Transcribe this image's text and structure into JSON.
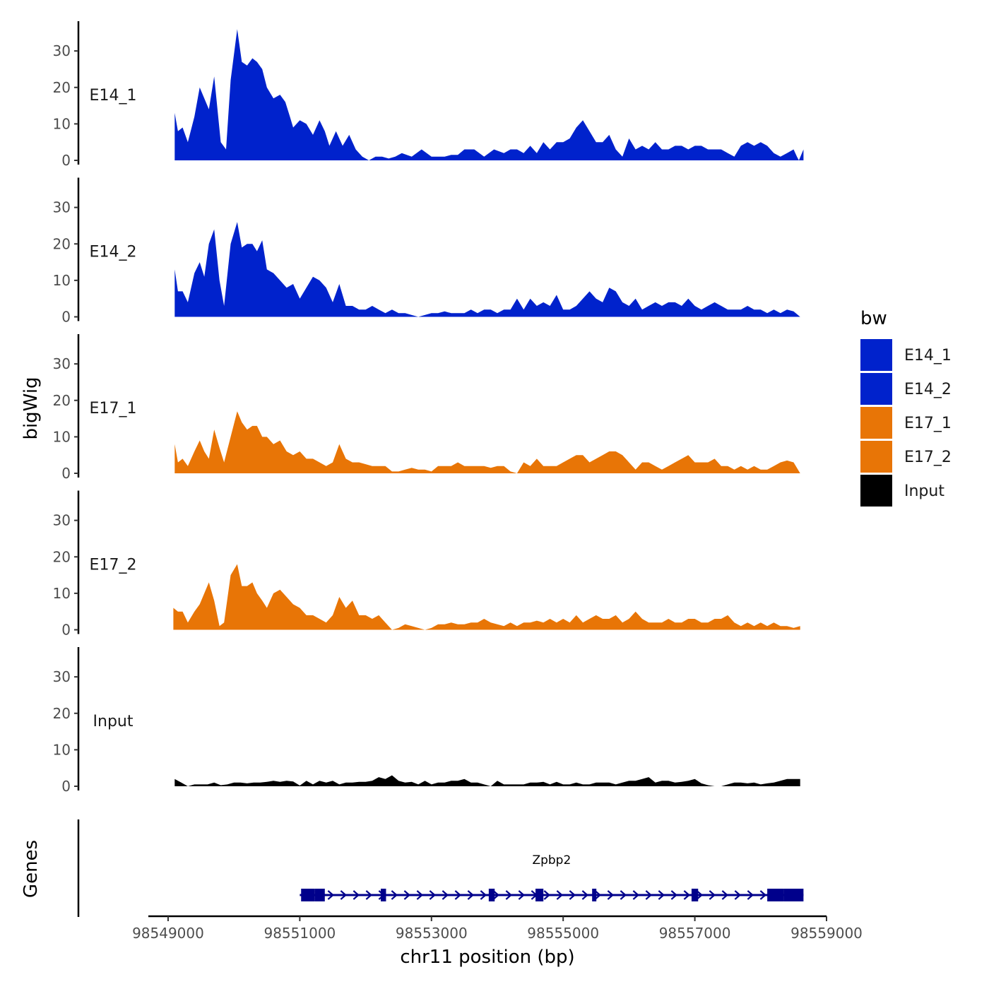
{
  "chart_data": {
    "type": "area",
    "title": "",
    "ylabel": "bigWig",
    "xlabel": "chr11 position (bp)",
    "gene_track_label": "Genes",
    "xlim": [
      98548700,
      98559000
    ],
    "ylim": [
      0,
      37
    ],
    "x_ticks": [
      98549000,
      98551000,
      98553000,
      98555000,
      98557000,
      98559000
    ],
    "x_tick_labels": [
      "98549000",
      "98551000",
      "98553000",
      "98555000",
      "98557000",
      "98559000"
    ],
    "y_ticks": [
      0,
      10,
      20,
      30
    ],
    "y_tick_labels": [
      "0",
      "10",
      "20",
      "30"
    ],
    "legend": {
      "title": "bw",
      "position": "right",
      "entries": [
        {
          "label": "E14_1",
          "color": "#0022CC"
        },
        {
          "label": "E14_2",
          "color": "#0022CC"
        },
        {
          "label": "E17_1",
          "color": "#E87506"
        },
        {
          "label": "E17_2",
          "color": "#E87506"
        },
        {
          "label": "Input",
          "color": "#000000"
        }
      ]
    },
    "series": [
      {
        "name": "E14_1",
        "color": "#0022CC",
        "x": [
          98549100,
          98549150,
          98549220,
          98549300,
          98549400,
          98549480,
          98549550,
          98549620,
          98549700,
          98549800,
          98549880,
          98549950,
          98550050,
          98550120,
          98550200,
          98550280,
          98550350,
          98550430,
          98550500,
          98550600,
          98550700,
          98550780,
          98550850,
          98550900,
          98551000,
          98551100,
          98551200,
          98551300,
          98551380,
          98551450,
          98551550,
          98551650,
          98551750,
          98551850,
          98551950,
          98552050,
          98552150,
          98552250,
          98552350,
          98552450,
          98552550,
          98552700,
          98552850,
          98553000,
          98553100,
          98553200,
          98553300,
          98553400,
          98553500,
          98553650,
          98553800,
          98553950,
          98554100,
          98554200,
          98554300,
          98554400,
          98554500,
          98554600,
          98554700,
          98554800,
          98554900,
          98555000,
          98555100,
          98555200,
          98555300,
          98555400,
          98555500,
          98555600,
          98555700,
          98555800,
          98555900,
          98556000,
          98556100,
          98556200,
          98556300,
          98556400,
          98556500,
          98556600,
          98556700,
          98556800,
          98556900,
          98557000,
          98557100,
          98557200,
          98557300,
          98557400,
          98557500,
          98557600,
          98557700,
          98557800,
          98557900,
          98558000,
          98558100,
          98558200,
          98558300,
          98558400,
          98558500,
          98558550,
          98558580,
          98558650
        ],
        "values": [
          13,
          8,
          9,
          5,
          12,
          20,
          17,
          14,
          23,
          5,
          3,
          22,
          36,
          27,
          26,
          28,
          27,
          25,
          20,
          17,
          18,
          16,
          12,
          9,
          11,
          10,
          7,
          11,
          8,
          4,
          8,
          4,
          7,
          3,
          1,
          0,
          1,
          1,
          0.5,
          1,
          2,
          1,
          3,
          1,
          1,
          1,
          1.5,
          1.5,
          3,
          3,
          1,
          3,
          2,
          3,
          3,
          2,
          4,
          2,
          5,
          3,
          5,
          5,
          6,
          9,
          11,
          8,
          5,
          5,
          7,
          3,
          1,
          6,
          3,
          4,
          3,
          5,
          3,
          3,
          4,
          4,
          3,
          4,
          4,
          3,
          3,
          3,
          2,
          1,
          4,
          5,
          4,
          5,
          4,
          2,
          1,
          2,
          3,
          1,
          0,
          3
        ]
      },
      {
        "name": "E14_2",
        "color": "#0022CC",
        "x": [
          98549100,
          98549150,
          98549220,
          98549300,
          98549400,
          98549480,
          98549550,
          98549620,
          98549700,
          98549780,
          98549850,
          98549950,
          98550050,
          98550120,
          98550200,
          98550280,
          98550350,
          98550430,
          98550500,
          98550600,
          98550700,
          98550800,
          98550900,
          98551000,
          98551100,
          98551200,
          98551300,
          98551400,
          98551500,
          98551600,
          98551700,
          98551800,
          98551900,
          98552000,
          98552100,
          98552200,
          98552300,
          98552400,
          98552500,
          98552600,
          98552700,
          98552800,
          98552900,
          98553000,
          98553100,
          98553200,
          98553300,
          98553400,
          98553500,
          98553600,
          98553700,
          98553800,
          98553900,
          98554000,
          98554100,
          98554200,
          98554300,
          98554400,
          98554500,
          98554600,
          98554700,
          98554800,
          98554900,
          98555000,
          98555100,
          98555200,
          98555300,
          98555400,
          98555500,
          98555600,
          98555700,
          98555800,
          98555900,
          98556000,
          98556100,
          98556200,
          98556300,
          98556400,
          98556500,
          98556600,
          98556700,
          98556800,
          98556900,
          98557000,
          98557100,
          98557200,
          98557300,
          98557400,
          98557500,
          98557600,
          98557700,
          98557800,
          98557900,
          98558000,
          98558100,
          98558200,
          98558300,
          98558400,
          98558500,
          98558600
        ],
        "values": [
          13,
          7,
          7,
          4,
          12,
          15,
          11,
          20,
          24,
          10,
          3,
          20,
          26,
          19,
          20,
          20,
          18,
          21,
          13,
          12,
          10,
          8,
          9,
          5,
          8,
          11,
          10,
          8,
          4,
          9,
          3,
          3,
          2,
          2,
          3,
          2,
          1,
          2,
          1,
          1,
          0.5,
          0,
          0.5,
          1,
          1,
          1.5,
          1,
          1,
          1,
          2,
          1,
          2,
          2,
          1,
          2,
          2,
          5,
          2,
          5,
          3,
          4,
          3,
          6,
          2,
          2,
          3,
          5,
          7,
          5,
          4,
          8,
          7,
          4,
          3,
          5,
          2,
          3,
          4,
          3,
          4,
          4,
          3,
          5,
          3,
          2,
          3,
          4,
          3,
          2,
          2,
          2,
          3,
          2,
          2,
          1,
          2,
          1,
          2,
          1.5,
          0
        ]
      },
      {
        "name": "E17_1",
        "color": "#E87506",
        "x": [
          98549100,
          98549150,
          98549220,
          98549300,
          98549400,
          98549480,
          98549550,
          98549620,
          98549700,
          98549780,
          98549850,
          98549950,
          98550050,
          98550120,
          98550200,
          98550280,
          98550350,
          98550430,
          98550500,
          98550600,
          98550700,
          98550800,
          98550900,
          98551000,
          98551100,
          98551200,
          98551300,
          98551400,
          98551500,
          98551600,
          98551700,
          98551800,
          98551900,
          98552000,
          98552100,
          98552200,
          98552300,
          98552400,
          98552500,
          98552600,
          98552700,
          98552800,
          98552900,
          98553000,
          98553100,
          98553200,
          98553300,
          98553400,
          98553500,
          98553600,
          98553700,
          98553800,
          98553900,
          98554000,
          98554100,
          98554200,
          98554300,
          98554400,
          98554500,
          98554600,
          98554700,
          98554800,
          98554900,
          98555000,
          98555100,
          98555200,
          98555300,
          98555400,
          98555500,
          98555600,
          98555700,
          98555800,
          98555900,
          98556000,
          98556100,
          98556200,
          98556300,
          98556400,
          98556500,
          98556600,
          98556700,
          98556800,
          98556900,
          98557000,
          98557100,
          98557200,
          98557300,
          98557400,
          98557500,
          98557600,
          98557700,
          98557800,
          98557900,
          98558000,
          98558100,
          98558200,
          98558300,
          98558400,
          98558500,
          98558600
        ],
        "values": [
          8,
          3,
          4,
          2,
          6,
          9,
          6,
          4,
          12,
          7,
          3,
          10,
          17,
          14,
          12,
          13,
          13,
          10,
          10,
          8,
          9,
          6,
          5,
          6,
          4,
          4,
          3,
          2,
          3,
          8,
          4,
          3,
          3,
          2.5,
          2,
          2,
          2,
          0.5,
          0.5,
          1,
          1.5,
          1,
          1,
          0.5,
          2,
          2,
          2,
          3,
          2,
          2,
          2,
          2,
          1.5,
          2,
          2,
          0.5,
          0,
          3,
          2,
          4,
          2,
          2,
          2,
          3,
          4,
          5,
          5,
          3,
          4,
          5,
          6,
          6,
          5,
          3,
          1,
          3,
          3,
          2,
          1,
          2,
          3,
          4,
          5,
          3,
          3,
          3,
          4,
          2,
          2,
          1,
          2,
          1,
          2,
          1,
          1,
          2,
          3,
          3.5,
          3,
          0
        ]
      },
      {
        "name": "E17_2",
        "color": "#E87506",
        "x": [
          98549080,
          98549150,
          98549220,
          98549300,
          98549400,
          98549480,
          98549550,
          98549620,
          98549700,
          98549780,
          98549850,
          98549950,
          98550050,
          98550120,
          98550200,
          98550280,
          98550350,
          98550430,
          98550500,
          98550600,
          98550700,
          98550800,
          98550900,
          98551000,
          98551100,
          98551200,
          98551300,
          98551400,
          98551500,
          98551600,
          98551700,
          98551800,
          98551900,
          98552000,
          98552100,
          98552200,
          98552300,
          98552400,
          98552500,
          98552600,
          98552700,
          98552800,
          98552900,
          98553000,
          98553100,
          98553200,
          98553300,
          98553400,
          98553500,
          98553600,
          98553700,
          98553800,
          98553900,
          98554000,
          98554100,
          98554200,
          98554300,
          98554400,
          98554500,
          98554600,
          98554700,
          98554800,
          98554900,
          98555000,
          98555100,
          98555200,
          98555300,
          98555400,
          98555500,
          98555600,
          98555700,
          98555800,
          98555900,
          98556000,
          98556100,
          98556200,
          98556300,
          98556400,
          98556500,
          98556600,
          98556700,
          98556800,
          98556900,
          98557000,
          98557100,
          98557200,
          98557300,
          98557400,
          98557500,
          98557600,
          98557700,
          98557800,
          98557900,
          98558000,
          98558100,
          98558200,
          98558300,
          98558400,
          98558500,
          98558600
        ],
        "values": [
          6,
          5,
          5,
          2,
          5,
          7,
          10,
          13,
          8,
          1,
          2,
          15,
          18,
          12,
          12,
          13,
          10,
          8,
          6,
          10,
          11,
          9,
          7,
          6,
          4,
          4,
          3,
          2,
          4,
          9,
          6,
          8,
          4,
          4,
          3,
          4,
          2,
          0,
          0.5,
          1.5,
          1,
          0.5,
          0,
          0.5,
          1.5,
          1.5,
          2,
          1.5,
          1.5,
          2,
          2,
          3,
          2,
          1.5,
          1,
          2,
          1,
          2,
          2,
          2.5,
          2,
          3,
          2,
          3,
          2,
          4,
          2,
          3,
          4,
          3,
          3,
          4,
          2,
          3,
          5,
          3,
          2,
          2,
          2,
          3,
          2,
          2,
          3,
          3,
          2,
          2,
          3,
          3,
          4,
          2,
          1,
          2,
          1,
          2,
          1,
          2,
          1,
          1,
          0.5,
          1
        ]
      },
      {
        "name": "Input",
        "color": "#000000",
        "x": [
          98549100,
          98549200,
          98549300,
          98549400,
          98549500,
          98549600,
          98549700,
          98549800,
          98549900,
          98550000,
          98550100,
          98550200,
          98550300,
          98550400,
          98550500,
          98550600,
          98550700,
          98550800,
          98550900,
          98551000,
          98551100,
          98551200,
          98551300,
          98551400,
          98551500,
          98551600,
          98551700,
          98551800,
          98551900,
          98552000,
          98552100,
          98552200,
          98552300,
          98552400,
          98552500,
          98552600,
          98552700,
          98552800,
          98552900,
          98553000,
          98553100,
          98553200,
          98553300,
          98553400,
          98553500,
          98553600,
          98553700,
          98553800,
          98553900,
          98554000,
          98554100,
          98554200,
          98554300,
          98554400,
          98554500,
          98554600,
          98554700,
          98554800,
          98554900,
          98555000,
          98555100,
          98555200,
          98555300,
          98555400,
          98555500,
          98555600,
          98555700,
          98555800,
          98555900,
          98556000,
          98556100,
          98556200,
          98556300,
          98556400,
          98556500,
          98556600,
          98556700,
          98556800,
          98556900,
          98557000,
          98557100,
          98557200,
          98557300,
          98557400,
          98557500,
          98557600,
          98557700,
          98557800,
          98557900,
          98558000,
          98558100,
          98558200,
          98558300,
          98558400,
          98558500,
          98558600
        ],
        "values": [
          2,
          1,
          0,
          0.5,
          0.5,
          0.5,
          1,
          0.3,
          0.5,
          1,
          1,
          0.8,
          1,
          1,
          1.2,
          1.5,
          1.2,
          1.5,
          1.3,
          0.2,
          1.5,
          0.5,
          1.5,
          1,
          1.5,
          0.5,
          1,
          1,
          1.2,
          1.2,
          1.5,
          2.5,
          2,
          3,
          1.5,
          1,
          1.2,
          0.5,
          1.5,
          0.5,
          1,
          1,
          1.5,
          1.5,
          2,
          1,
          1,
          0.5,
          0,
          1.5,
          0.5,
          0.5,
          0.5,
          0.5,
          1,
          1,
          1.2,
          0.5,
          1.2,
          0.5,
          0.5,
          1,
          0.5,
          0.5,
          1,
          1,
          1,
          0.5,
          1,
          1.5,
          1.5,
          2,
          2.5,
          1,
          1.5,
          1.5,
          1,
          1.2,
          1.5,
          2,
          0.8,
          0.3,
          0,
          0,
          0.5,
          1,
          1,
          0.8,
          1,
          0.5,
          0.8,
          1,
          1.5,
          2,
          2,
          2
        ]
      }
    ],
    "genes": [
      {
        "name": "Zpbp2",
        "start": 98551000,
        "end": 98558650,
        "strand": "+",
        "color": "#00008B",
        "exons": [
          [
            98551020,
            98551230
          ],
          [
            98551230,
            98551380
          ],
          [
            98552230,
            98552310
          ],
          [
            98553870,
            98553960
          ],
          [
            98554580,
            98554700
          ],
          [
            98555440,
            98555500
          ],
          [
            98556950,
            98557050
          ],
          [
            98558100,
            98558350
          ],
          [
            98558350,
            98558650
          ]
        ]
      }
    ]
  }
}
